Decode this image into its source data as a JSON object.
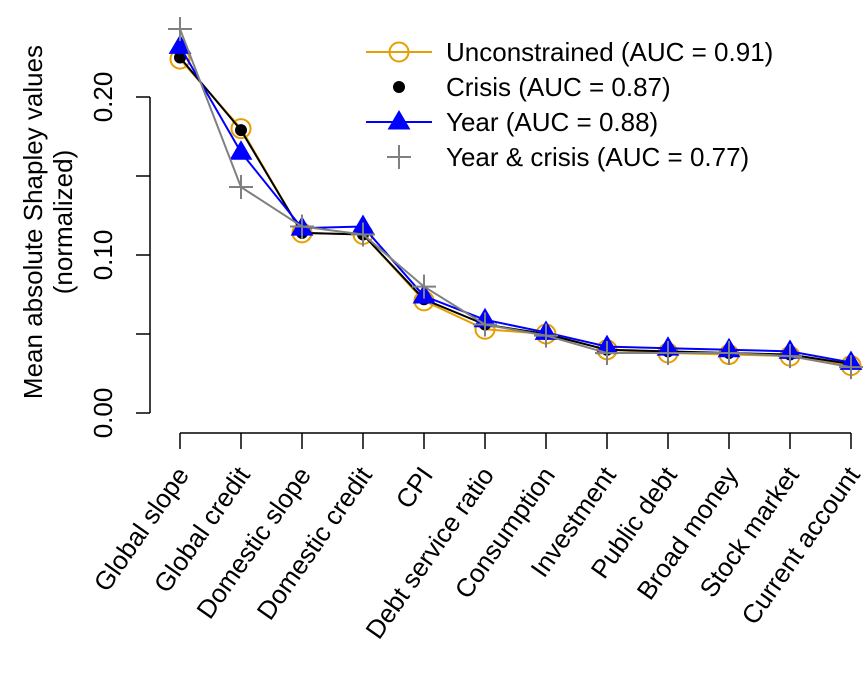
{
  "chart_data": {
    "type": "line",
    "title": "",
    "xlabel": "",
    "ylabel": "Mean absolute Shapley values",
    "ylabel2": "(normalized)",
    "ylim": [
      0.0,
      0.25
    ],
    "yticks": [
      0.0,
      0.05,
      0.1,
      0.15,
      0.2
    ],
    "ytick_labels": [
      "0.00",
      "",
      "0.10",
      "",
      "0.20"
    ],
    "grid": false,
    "legend_position": "top-right",
    "categories": [
      "Global slope",
      "Global credit",
      "Domestic slope",
      "Domestic credit",
      "CPI",
      "Debt service ratio",
      "Consumption",
      "Investment",
      "Public debt",
      "Broad money",
      "Stock market",
      "Current account"
    ],
    "series": [
      {
        "name": "Unconstrained (AUC = 0.91)",
        "color": "#E69F00",
        "marker": "open-circle",
        "values": [
          0.224,
          0.18,
          0.114,
          0.113,
          0.071,
          0.053,
          0.05,
          0.04,
          0.038,
          0.037,
          0.036,
          0.03
        ]
      },
      {
        "name": "Crisis (AUC = 0.87)",
        "color": "#000000",
        "marker": "filled-circle",
        "values": [
          0.225,
          0.179,
          0.114,
          0.113,
          0.072,
          0.056,
          0.05,
          0.04,
          0.039,
          0.038,
          0.037,
          0.031
        ]
      },
      {
        "name": "Year (AUC = 0.88)",
        "color": "#0000FF",
        "marker": "filled-triangle",
        "values": [
          0.232,
          0.165,
          0.117,
          0.118,
          0.074,
          0.059,
          0.051,
          0.042,
          0.041,
          0.04,
          0.039,
          0.032
        ]
      },
      {
        "name": "Year & crisis (AUC = 0.77)",
        "color": "#808080",
        "marker": "plus",
        "values": [
          0.243,
          0.143,
          0.118,
          0.113,
          0.08,
          0.056,
          0.049,
          0.038,
          0.038,
          0.038,
          0.036,
          0.029
        ]
      }
    ]
  }
}
